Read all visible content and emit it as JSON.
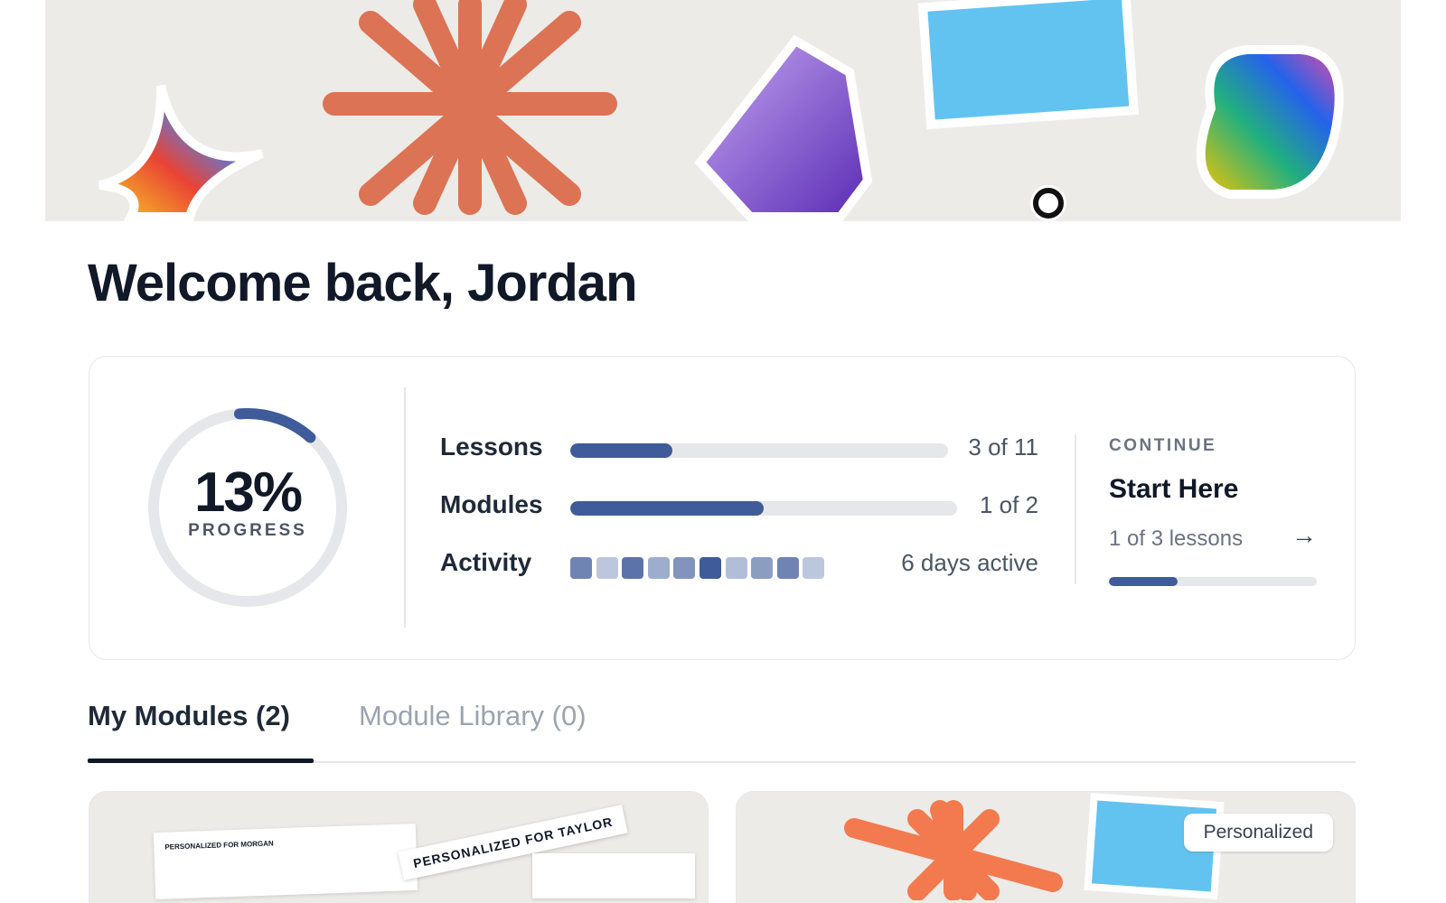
{
  "header": {
    "greeting": "Welcome back, Jordan"
  },
  "progress": {
    "percent_text": "13%",
    "percent": 13,
    "label": "PROGRESS",
    "lessons": {
      "label": "Lessons",
      "value": "3 of 11",
      "fraction": 0.27
    },
    "modules": {
      "label": "Modules",
      "value": "1 of 2",
      "fraction": 0.5
    },
    "activity": {
      "label": "Activity",
      "value": "6 days active",
      "levels": [
        0.75,
        0.35,
        0.85,
        0.5,
        0.65,
        1,
        0.4,
        0.6,
        0.75,
        0.35
      ]
    }
  },
  "continue": {
    "eyebrow": "CONTINUE",
    "title": "Start Here",
    "subtitle": "1 of 3 lessons",
    "fraction": 0.33
  },
  "tabs": [
    {
      "label": "My Modules (2)",
      "active": true
    },
    {
      "label": "Module Library (0)",
      "active": false
    }
  ],
  "modules": [
    {
      "thumb_doc_heading": "PERSONALIZED FOR MORGAN",
      "thumb_tag": "PERSONALIZED FOR TAYLOR"
    },
    {
      "badge": "Personalized"
    }
  ],
  "colors": {
    "accent": "#3f5b9a",
    "track": "#e5e7eb",
    "text": "#111827"
  }
}
